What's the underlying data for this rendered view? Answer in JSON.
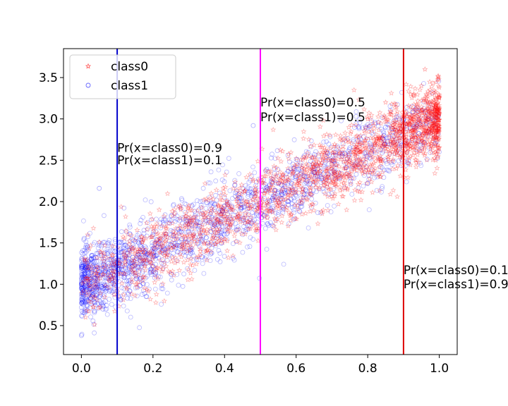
{
  "chart_data": {
    "type": "scatter",
    "title": "",
    "xlabel": "",
    "ylabel": "",
    "xlim": [
      -0.05,
      1.05
    ],
    "ylim": [
      0.15,
      3.85
    ],
    "xticks": [
      "0.0",
      "0.2",
      "0.4",
      "0.6",
      "0.8",
      "1.0"
    ],
    "yticks": [
      "0.5",
      "1.0",
      "1.5",
      "2.0",
      "2.5",
      "3.0",
      "3.5"
    ],
    "grid": false,
    "legend_position": "top-left",
    "series": [
      {
        "name": "class0",
        "marker": "star",
        "color": "#ff0000",
        "trend": {
          "x": [
            0.0,
            0.5,
            1.0
          ],
          "y": [
            1.0,
            2.0,
            3.0
          ]
        },
        "points": [
          [
            0.02,
            1.05
          ],
          [
            0.06,
            1.12
          ],
          [
            0.1,
            1.3
          ],
          [
            0.14,
            1.45
          ],
          [
            0.18,
            1.42
          ],
          [
            0.22,
            1.55
          ],
          [
            0.26,
            1.6
          ],
          [
            0.3,
            1.72
          ],
          [
            0.34,
            1.78
          ],
          [
            0.38,
            1.85
          ],
          [
            0.42,
            1.9
          ],
          [
            0.46,
            2.0
          ],
          [
            0.5,
            2.05
          ],
          [
            0.54,
            2.1
          ],
          [
            0.58,
            2.15
          ],
          [
            0.62,
            2.3
          ],
          [
            0.66,
            2.35
          ],
          [
            0.7,
            2.45
          ],
          [
            0.74,
            2.55
          ],
          [
            0.78,
            2.6
          ],
          [
            0.82,
            2.7
          ],
          [
            0.86,
            2.8
          ],
          [
            0.9,
            2.85
          ],
          [
            0.94,
            2.95
          ],
          [
            0.98,
            3.05
          ],
          [
            0.96,
            3.6
          ],
          [
            0.92,
            3.3
          ],
          [
            0.88,
            2.4
          ],
          [
            0.99,
            2.5
          ],
          [
            0.85,
            3.2
          ],
          [
            0.8,
            3.0
          ],
          [
            0.95,
            3.4
          ]
        ]
      },
      {
        "name": "class1",
        "marker": "circle",
        "color": "#0000ff",
        "trend": {
          "x": [
            0.0,
            0.5,
            1.0
          ],
          "y": [
            1.0,
            2.0,
            3.0
          ]
        },
        "points": [
          [
            0.0,
            0.95
          ],
          [
            0.01,
            1.2
          ],
          [
            0.02,
            0.8
          ],
          [
            0.03,
            1.35
          ],
          [
            0.04,
            1.0
          ],
          [
            0.05,
            1.5
          ],
          [
            0.06,
            0.7
          ],
          [
            0.08,
            1.1
          ],
          [
            0.1,
            1.25
          ],
          [
            0.12,
            1.4
          ],
          [
            0.14,
            1.15
          ],
          [
            0.16,
            1.5
          ],
          [
            0.18,
            1.35
          ],
          [
            0.2,
            1.6
          ],
          [
            0.22,
            1.45
          ],
          [
            0.25,
            1.65
          ],
          [
            0.28,
            1.55
          ],
          [
            0.3,
            1.8
          ],
          [
            0.33,
            1.7
          ],
          [
            0.36,
            1.85
          ],
          [
            0.4,
            1.95
          ],
          [
            0.44,
            2.0
          ],
          [
            0.48,
            2.1
          ],
          [
            0.52,
            2.15
          ],
          [
            0.56,
            2.2
          ],
          [
            0.6,
            2.3
          ],
          [
            0.65,
            2.4
          ],
          [
            0.7,
            2.5
          ],
          [
            0.75,
            2.65
          ],
          [
            0.8,
            2.75
          ],
          [
            0.85,
            2.9
          ],
          [
            0.9,
            3.0
          ],
          [
            0.95,
            3.1
          ],
          [
            0.05,
            2.16
          ],
          [
            0.48,
            2.92
          ],
          [
            0.0,
            0.38
          ]
        ]
      }
    ],
    "vlines": [
      {
        "x": 0.1,
        "color": "#0000cc",
        "text": [
          "Pr(x=class0)=0.9",
          "Pr(x=class1)=0.1"
        ],
        "text_y": [
          2.6,
          2.45
        ]
      },
      {
        "x": 0.5,
        "color": "#ff00ff",
        "text": [
          "Pr(x=class0)=0.5",
          "Pr(x=class1)=0.5"
        ],
        "text_y": [
          3.15,
          2.97
        ]
      },
      {
        "x": 0.9,
        "color": "#dd0000",
        "text": [
          "Pr(x=class0)=0.1",
          "Pr(x=class1)=0.9"
        ],
        "text_y": [
          1.12,
          0.95
        ]
      }
    ]
  }
}
